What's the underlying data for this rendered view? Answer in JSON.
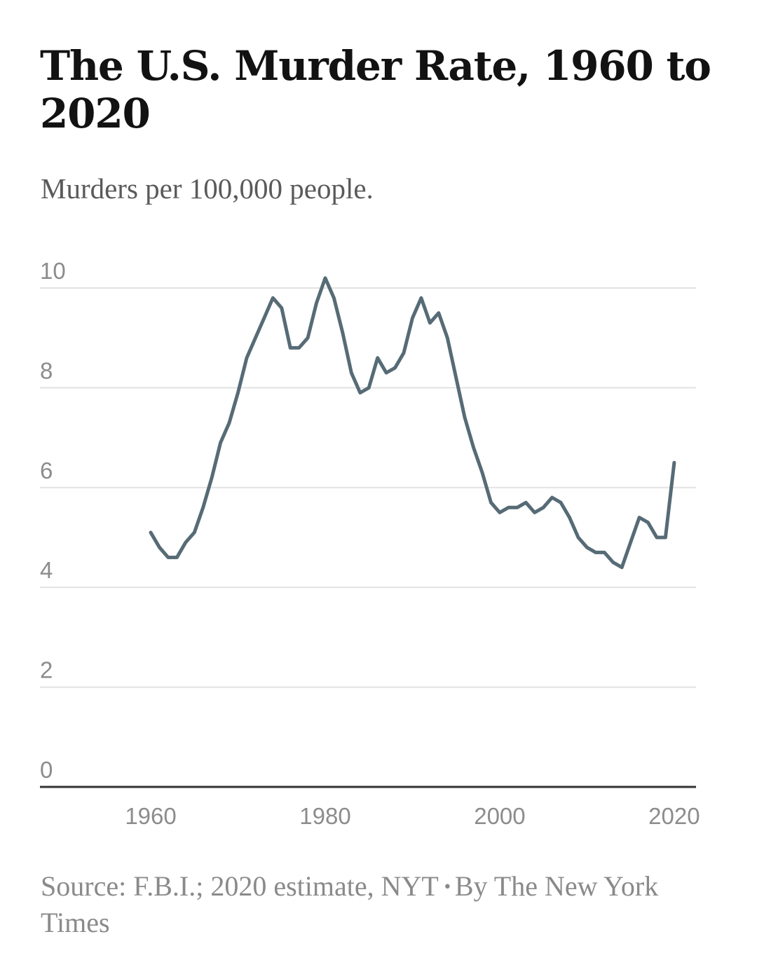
{
  "header": {
    "title": "The U.S. Murder Rate, 1960 to 2020",
    "subtitle": "Murders per 100,000 people."
  },
  "footer": {
    "source_text": "Source: F.B.I.; 2020 estimate, NYT",
    "bullet": "•",
    "byline": "By The New York Times"
  },
  "colors": {
    "line": "#566b75",
    "grid": "#e2e2e2",
    "baseline": "#333333"
  },
  "chart_data": {
    "type": "line",
    "title": "The U.S. Murder Rate, 1960 to 2020",
    "subtitle": "Murders per 100,000 people.",
    "xlabel": "",
    "ylabel": "",
    "xlim": [
      1946.5,
      2022.5
    ],
    "ylim": [
      0,
      10
    ],
    "xticks": [
      1960,
      1980,
      2000,
      2020
    ],
    "yticks": [
      0,
      2,
      4,
      6,
      8,
      10
    ],
    "grid": true,
    "x": [
      1960,
      1961,
      1962,
      1963,
      1964,
      1965,
      1966,
      1967,
      1968,
      1969,
      1970,
      1971,
      1972,
      1973,
      1974,
      1975,
      1976,
      1977,
      1978,
      1979,
      1980,
      1981,
      1982,
      1983,
      1984,
      1985,
      1986,
      1987,
      1988,
      1989,
      1990,
      1991,
      1992,
      1993,
      1994,
      1995,
      1996,
      1997,
      1998,
      1999,
      2000,
      2001,
      2002,
      2003,
      2004,
      2005,
      2006,
      2007,
      2008,
      2009,
      2010,
      2011,
      2012,
      2013,
      2014,
      2015,
      2016,
      2017,
      2018,
      2019,
      2020
    ],
    "series": [
      {
        "values": [
          5.1,
          4.8,
          4.6,
          4.6,
          4.9,
          5.1,
          5.6,
          6.2,
          6.9,
          7.3,
          7.9,
          8.6,
          9.0,
          9.4,
          9.8,
          9.6,
          8.8,
          8.8,
          9.0,
          9.7,
          10.2,
          9.8,
          9.1,
          8.3,
          7.9,
          8.0,
          8.6,
          8.3,
          8.4,
          8.7,
          9.4,
          9.8,
          9.3,
          9.5,
          9.0,
          8.2,
          7.4,
          6.8,
          6.3,
          5.7,
          5.5,
          5.6,
          5.6,
          5.7,
          5.5,
          5.6,
          5.8,
          5.7,
          5.4,
          5.0,
          4.8,
          4.7,
          4.7,
          4.5,
          4.4,
          4.9,
          5.4,
          5.3,
          5.0,
          5.0,
          6.5
        ]
      }
    ]
  }
}
